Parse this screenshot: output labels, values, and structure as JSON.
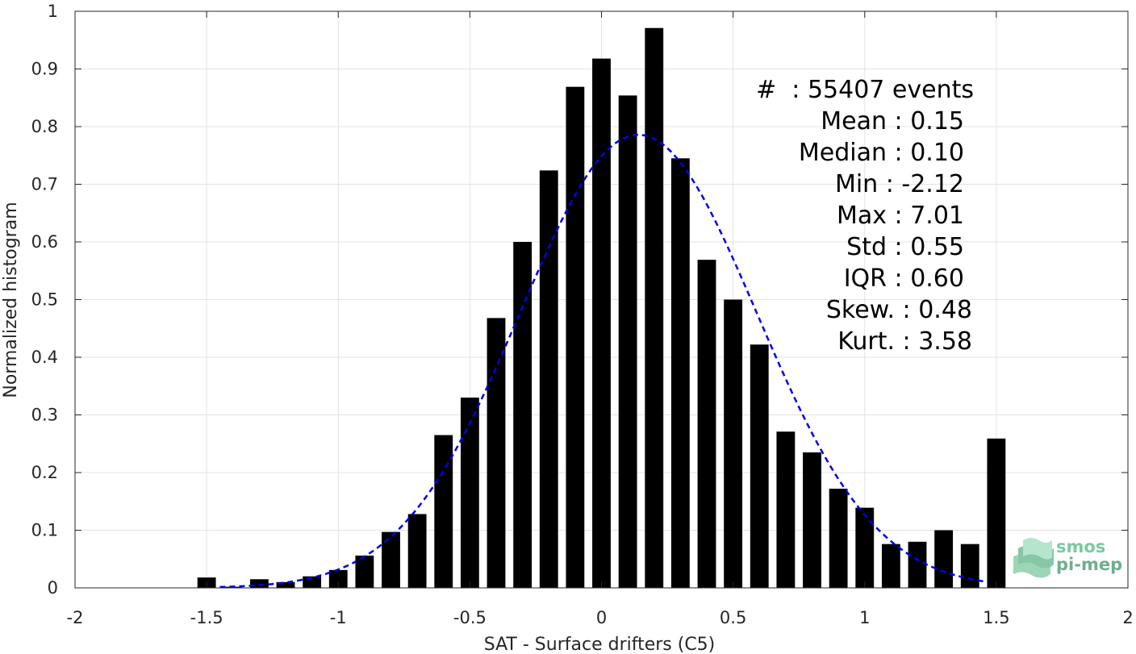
{
  "chart_data": {
    "type": "bar",
    "xlabel": "SAT - Surface drifters (C5)",
    "ylabel": "Normalized histogram",
    "xlim": [
      -2,
      2
    ],
    "ylim": [
      0,
      1
    ],
    "xticks": [
      "-2",
      "-1.5",
      "-1",
      "-0.5",
      "0",
      "0.5",
      "1",
      "1.5",
      "2"
    ],
    "yticks": [
      "0",
      "0.1",
      "0.2",
      "0.3",
      "0.4",
      "0.5",
      "0.6",
      "0.7",
      "0.8",
      "0.9",
      "1"
    ],
    "grid": true,
    "bar_color": "#000000",
    "bin_width": 0.1,
    "bars": [
      {
        "x": -1.5,
        "y": 0.018
      },
      {
        "x": -1.4,
        "y": 0.002
      },
      {
        "x": -1.3,
        "y": 0.015
      },
      {
        "x": -1.2,
        "y": 0.01
      },
      {
        "x": -1.1,
        "y": 0.02
      },
      {
        "x": -1.0,
        "y": 0.031
      },
      {
        "x": -0.9,
        "y": 0.056
      },
      {
        "x": -0.8,
        "y": 0.097
      },
      {
        "x": -0.7,
        "y": 0.128
      },
      {
        "x": -0.6,
        "y": 0.265
      },
      {
        "x": -0.5,
        "y": 0.33
      },
      {
        "x": -0.4,
        "y": 0.468
      },
      {
        "x": -0.3,
        "y": 0.6
      },
      {
        "x": -0.2,
        "y": 0.724
      },
      {
        "x": -0.1,
        "y": 0.869
      },
      {
        "x": 0.0,
        "y": 0.918
      },
      {
        "x": 0.1,
        "y": 0.854
      },
      {
        "x": 0.2,
        "y": 0.971
      },
      {
        "x": 0.3,
        "y": 0.745
      },
      {
        "x": 0.4,
        "y": 0.569
      },
      {
        "x": 0.5,
        "y": 0.5
      },
      {
        "x": 0.6,
        "y": 0.422
      },
      {
        "x": 0.7,
        "y": 0.271
      },
      {
        "x": 0.8,
        "y": 0.235
      },
      {
        "x": 0.9,
        "y": 0.172
      },
      {
        "x": 1.0,
        "y": 0.139
      },
      {
        "x": 1.1,
        "y": 0.076
      },
      {
        "x": 1.2,
        "y": 0.08
      },
      {
        "x": 1.3,
        "y": 0.1
      },
      {
        "x": 1.4,
        "y": 0.076
      },
      {
        "x": 1.5,
        "y": 0.259
      }
    ],
    "fit_curve": {
      "style": "dashed",
      "color": "#0000ee",
      "mean": 0.14,
      "std": 0.45,
      "peak": 0.786,
      "x_range": [
        -1.45,
        1.45
      ]
    },
    "stats": [
      {
        "label": "#  : 55407 events"
      },
      {
        "label": "Mean : 0.15"
      },
      {
        "label": "Median : 0.10"
      },
      {
        "label": "Min : -2.12"
      },
      {
        "label": "Max : 7.01"
      },
      {
        "label": "Std : 0.55"
      },
      {
        "label": "IQR : 0.60"
      },
      {
        "label": "Skew. : 0.48"
      },
      {
        "label": "Kurt. : 3.58"
      }
    ]
  },
  "logo": {
    "line1": "smos",
    "line2": "pi-mep",
    "color": "#5fb58a",
    "icon": "wave-stack-icon"
  }
}
